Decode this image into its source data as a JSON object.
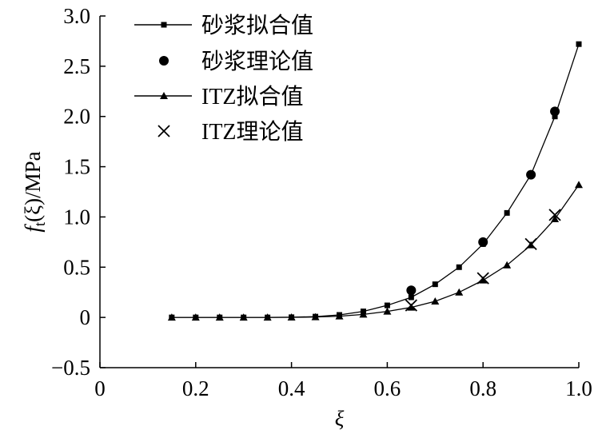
{
  "chart_data": {
    "type": "line",
    "title": "",
    "xlabel": "ξ",
    "ylabel_parts": {
      "f": "f",
      "sub": "t",
      "rest": "(ξ)/MPa"
    },
    "xlim": [
      0,
      1.0
    ],
    "ylim": [
      -0.5,
      3.0
    ],
    "x_ticks": [
      0,
      0.2,
      0.4,
      0.6,
      0.8,
      1.0
    ],
    "x_tick_labels": [
      "0",
      "0.2",
      "0.4",
      "0.6",
      "0.8",
      "1.0"
    ],
    "y_ticks": [
      -0.5,
      0,
      0.5,
      1.0,
      1.5,
      2.0,
      2.5,
      3.0
    ],
    "y_tick_labels": [
      "−0.5",
      "0",
      "0.5",
      "1.0",
      "1.5",
      "2.0",
      "2.5",
      "3.0"
    ],
    "grid": false,
    "legend_position": "top-left",
    "series": [
      {
        "name": "砂浆拟合值",
        "style": "line-square",
        "x": [
          0.15,
          0.2,
          0.25,
          0.3,
          0.35,
          0.4,
          0.45,
          0.5,
          0.55,
          0.6,
          0.65,
          0.7,
          0.75,
          0.8,
          0.85,
          0.9,
          0.95,
          1.0
        ],
        "y": [
          0,
          0,
          0,
          0,
          0,
          0.002,
          0.008,
          0.025,
          0.06,
          0.12,
          0.2,
          0.33,
          0.5,
          0.73,
          1.04,
          1.42,
          2.0,
          2.72
        ]
      },
      {
        "name": "砂浆理论值",
        "style": "marker-circle",
        "x": [
          0.65,
          0.8,
          0.9,
          0.95
        ],
        "y": [
          0.27,
          0.75,
          1.42,
          2.05
        ]
      },
      {
        "name": "ITZ拟合值",
        "style": "line-triangle",
        "x": [
          0.15,
          0.2,
          0.25,
          0.3,
          0.35,
          0.4,
          0.45,
          0.5,
          0.55,
          0.6,
          0.65,
          0.7,
          0.75,
          0.8,
          0.85,
          0.9,
          0.95,
          1.0
        ],
        "y": [
          0,
          0,
          0,
          0,
          0,
          0.001,
          0.004,
          0.012,
          0.03,
          0.06,
          0.1,
          0.16,
          0.25,
          0.37,
          0.52,
          0.72,
          0.98,
          1.32
        ]
      },
      {
        "name": "ITZ理论值",
        "style": "marker-cross",
        "x": [
          0.65,
          0.8,
          0.9,
          0.95
        ],
        "y": [
          0.12,
          0.39,
          0.73,
          1.02
        ]
      }
    ]
  }
}
